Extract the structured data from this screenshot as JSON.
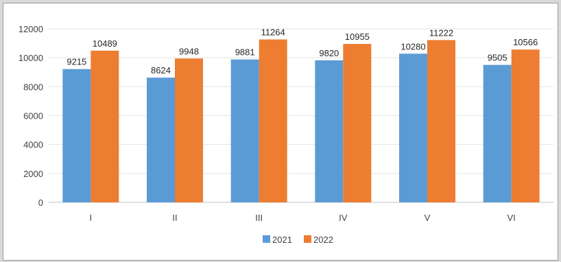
{
  "chart_data": {
    "type": "bar",
    "title": "",
    "xlabel": "",
    "ylabel": "",
    "categories": [
      "I",
      "II",
      "III",
      "IV",
      "V",
      "VI"
    ],
    "series": [
      {
        "name": "2021",
        "color": "#5b9bd5",
        "values": [
          9215,
          8624,
          9881,
          9820,
          10280,
          9505
        ]
      },
      {
        "name": "2022",
        "color": "#ed7d31",
        "values": [
          10489,
          9948,
          11264,
          10955,
          11222,
          10566
        ]
      }
    ],
    "ylim": [
      0,
      12000
    ],
    "yticks": [
      0,
      2000,
      4000,
      6000,
      8000,
      10000,
      12000
    ],
    "grid": true,
    "legend": "bottom-center"
  }
}
